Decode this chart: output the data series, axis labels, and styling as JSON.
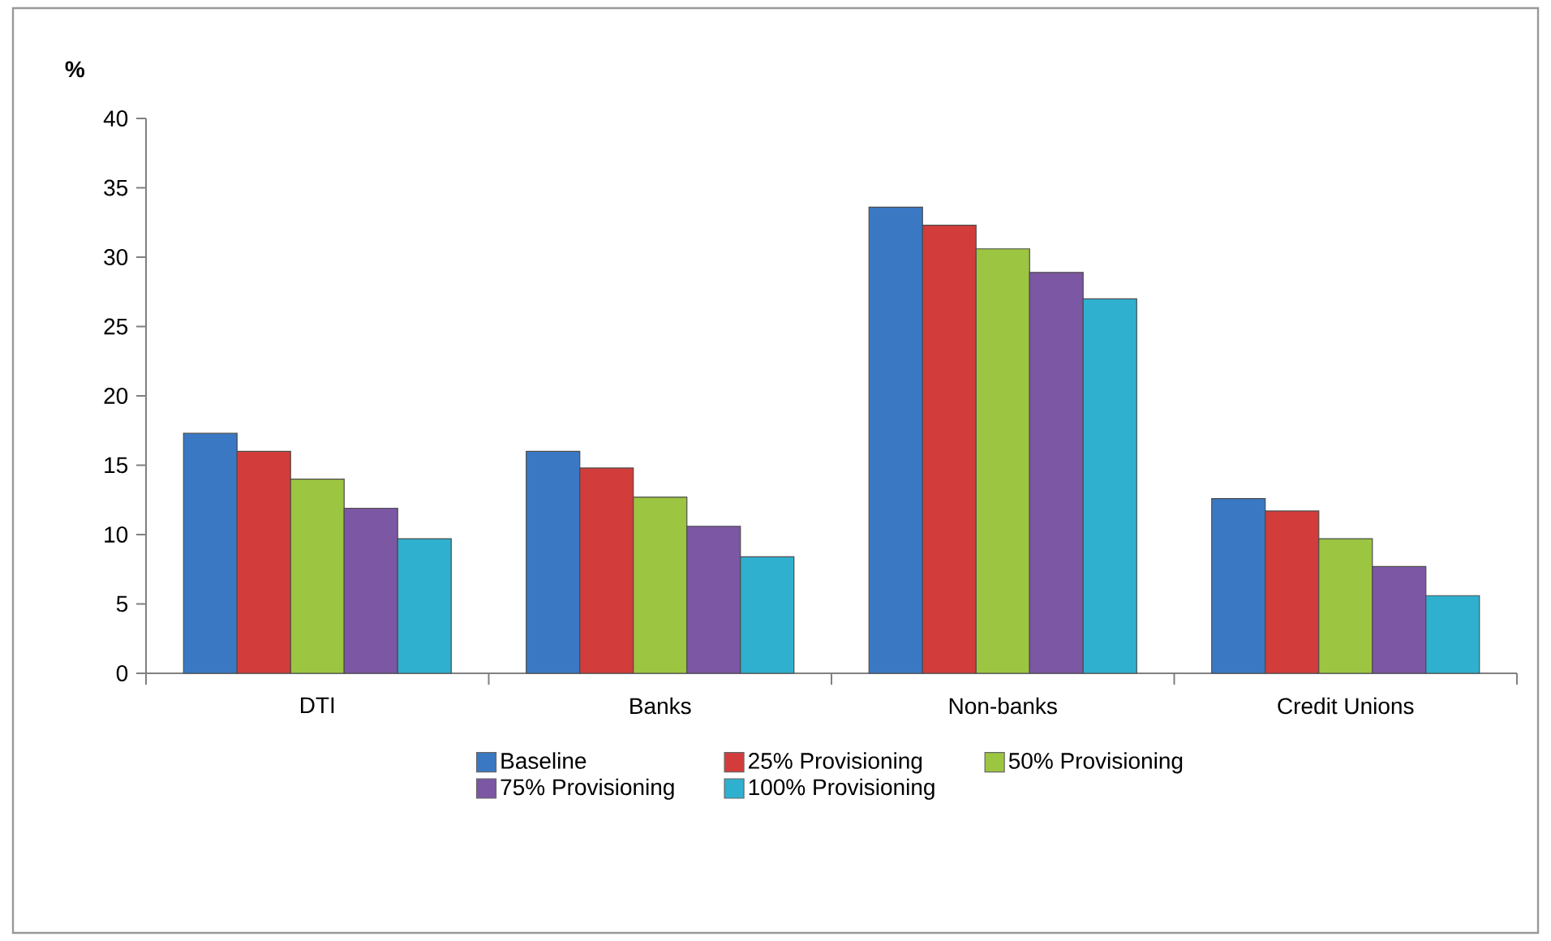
{
  "chart_data": {
    "type": "bar",
    "ylabel": "%",
    "categories": [
      "DTI",
      "Banks",
      "Non-banks",
      "Credit Unions"
    ],
    "series": [
      {
        "name": "Baseline",
        "color": "#3a78c4",
        "values": [
          17.3,
          16.0,
          33.6,
          12.6
        ]
      },
      {
        "name": "25% Provisioning",
        "color": "#d23c3a",
        "values": [
          16.0,
          14.8,
          32.3,
          11.7
        ]
      },
      {
        "name": "50% Provisioning",
        "color": "#9cc541",
        "values": [
          14.0,
          12.7,
          30.6,
          9.7
        ]
      },
      {
        "name": "75% Provisioning",
        "color": "#7c57a4",
        "values": [
          11.9,
          10.6,
          28.9,
          7.7
        ]
      },
      {
        "name": "100% Provisioning",
        "color": "#2fb0cf",
        "values": [
          9.7,
          8.4,
          27.0,
          5.6
        ]
      }
    ],
    "ylim": [
      0,
      40
    ],
    "yticks": [
      0,
      5,
      10,
      15,
      20,
      25,
      30,
      35,
      40
    ],
    "grid": false,
    "legend": "bottom"
  }
}
